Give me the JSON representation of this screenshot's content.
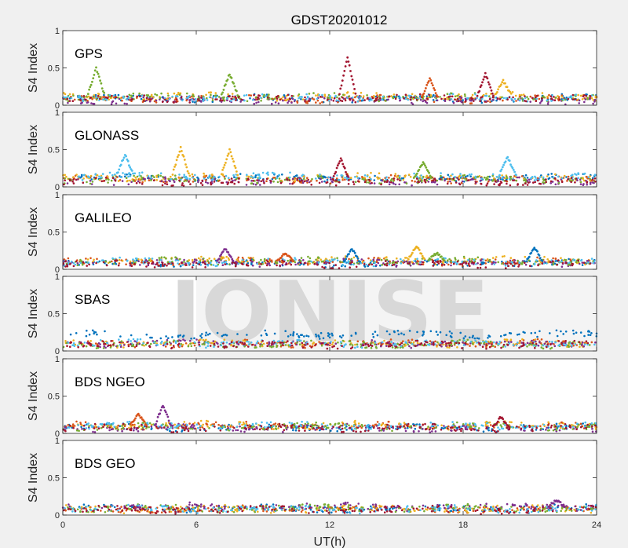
{
  "title": "GDST20201012",
  "xlabel": "UT(h)",
  "watermark": "IONISE",
  "colors": {
    "series": [
      "#0072BD",
      "#D95319",
      "#EDB120",
      "#7E2F8E",
      "#77AC30",
      "#4DBEEE",
      "#A2142F"
    ],
    "axes_bg": "#ffffff",
    "figure_bg": "#f0f0f0"
  },
  "chart_data": [
    {
      "type": "scatter",
      "panel_label": "GPS",
      "ylabel": "S4 Index",
      "xlim": [
        0,
        24
      ],
      "ylim": [
        0,
        1
      ],
      "xticks": [
        "0",
        "6",
        "12",
        "18",
        "24"
      ],
      "yticks": [
        "0",
        "0.5",
        "1"
      ],
      "baseline_s4": [
        0.09,
        0.08,
        0.12,
        0.07,
        0.11,
        0.1,
        0.09
      ],
      "spikes": [
        {
          "series": 4,
          "x": 1.5,
          "y": 0.5
        },
        {
          "series": 4,
          "x": 7.5,
          "y": 0.42
        },
        {
          "series": 6,
          "x": 12.8,
          "y": 0.65
        },
        {
          "series": 1,
          "x": 16.5,
          "y": 0.35
        },
        {
          "series": 6,
          "x": 19.0,
          "y": 0.42
        },
        {
          "series": 2,
          "x": 19.8,
          "y": 0.33
        }
      ]
    },
    {
      "type": "scatter",
      "panel_label": "GLONASS",
      "ylabel": "S4 Index",
      "xlim": [
        0,
        24
      ],
      "ylim": [
        0,
        1
      ],
      "xticks": [
        "0",
        "6",
        "12",
        "18",
        "24"
      ],
      "yticks": [
        "0",
        "0.5",
        "1"
      ],
      "baseline_s4": [
        0.12,
        0.1,
        0.13,
        0.08,
        0.1,
        0.14,
        0.07
      ],
      "spikes": [
        {
          "series": 5,
          "x": 2.8,
          "y": 0.43
        },
        {
          "series": 2,
          "x": 5.3,
          "y": 0.53
        },
        {
          "series": 2,
          "x": 7.5,
          "y": 0.5
        },
        {
          "series": 6,
          "x": 12.5,
          "y": 0.38
        },
        {
          "series": 4,
          "x": 16.2,
          "y": 0.33
        },
        {
          "series": 5,
          "x": 20.0,
          "y": 0.4
        }
      ]
    },
    {
      "type": "scatter",
      "panel_label": "GALILEO",
      "ylabel": "S4 Index",
      "xlim": [
        0,
        24
      ],
      "ylim": [
        0,
        1
      ],
      "xticks": [
        "0",
        "6",
        "12",
        "18",
        "24"
      ],
      "yticks": [
        "0",
        "0.5",
        "1"
      ],
      "baseline_s4": [
        0.08,
        0.1,
        0.12,
        0.09,
        0.11,
        0.1,
        0.07
      ],
      "spikes": [
        {
          "series": 3,
          "x": 7.3,
          "y": 0.28
        },
        {
          "series": 1,
          "x": 10.0,
          "y": 0.22
        },
        {
          "series": 0,
          "x": 13.0,
          "y": 0.28
        },
        {
          "series": 2,
          "x": 15.9,
          "y": 0.31
        },
        {
          "series": 4,
          "x": 16.8,
          "y": 0.22
        },
        {
          "series": 0,
          "x": 21.2,
          "y": 0.3
        }
      ]
    },
    {
      "type": "scatter",
      "panel_label": "SBAS",
      "ylabel": "S4 Index",
      "xlim": [
        0,
        24
      ],
      "ylim": [
        0,
        1
      ],
      "xticks": [
        "0",
        "6",
        "12",
        "18",
        "24"
      ],
      "yticks": [
        "0",
        "0.5",
        "1"
      ],
      "baseline_s4": [
        0.22,
        0.1,
        0.1,
        0.1,
        0.09,
        0.1,
        0.08
      ],
      "spikes": []
    },
    {
      "type": "scatter",
      "panel_label": "BDS NGEO",
      "ylabel": "S4 Index",
      "xlim": [
        0,
        24
      ],
      "ylim": [
        0,
        1
      ],
      "xticks": [
        "0",
        "6",
        "12",
        "18",
        "24"
      ],
      "yticks": [
        "0",
        "0.5",
        "1"
      ],
      "baseline_s4": [
        0.08,
        0.1,
        0.11,
        0.07,
        0.09,
        0.1,
        0.07
      ],
      "spikes": [
        {
          "series": 1,
          "x": 3.4,
          "y": 0.26
        },
        {
          "series": 3,
          "x": 4.5,
          "y": 0.38
        },
        {
          "series": 6,
          "x": 19.7,
          "y": 0.22
        }
      ]
    },
    {
      "type": "scatter",
      "panel_label": "BDS GEO",
      "ylabel": "S4 Index",
      "xlim": [
        0,
        24
      ],
      "ylim": [
        0,
        1
      ],
      "xticks": [
        "0",
        "6",
        "12",
        "18",
        "24"
      ],
      "yticks": [
        "0",
        "0.5",
        "1"
      ],
      "baseline_s4": [
        0.09,
        0.08,
        0.08,
        0.11,
        0.09,
        0.08,
        0.07
      ],
      "spikes": [
        {
          "series": 3,
          "x": 22.2,
          "y": 0.2
        }
      ]
    }
  ]
}
